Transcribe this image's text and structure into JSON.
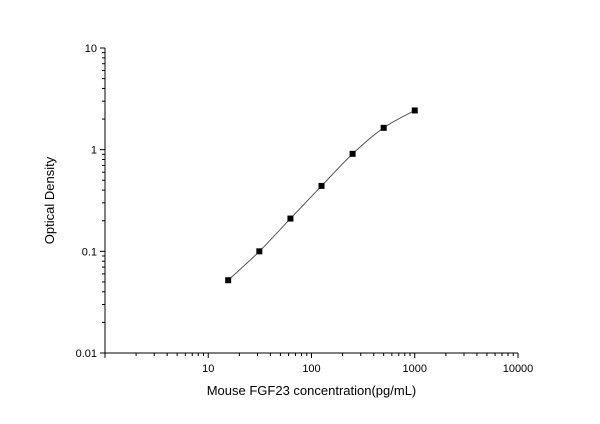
{
  "chart_data": {
    "type": "scatter",
    "title": "",
    "xlabel": "Mouse FGF23 concentration(pg/mL)",
    "ylabel": "Optical Density",
    "xscale": "log",
    "yscale": "log",
    "xlim": [
      1,
      10000
    ],
    "ylim": [
      0.01,
      10
    ],
    "x_ticks": [
      {
        "value": 10,
        "label": "10"
      },
      {
        "value": 100,
        "label": "100"
      },
      {
        "value": 1000,
        "label": "1000"
      },
      {
        "value": 10000,
        "label": "10000"
      }
    ],
    "y_ticks": [
      {
        "value": 0.01,
        "label": "0.01"
      },
      {
        "value": 0.1,
        "label": "0.1"
      },
      {
        "value": 1,
        "label": "1"
      },
      {
        "value": 10,
        "label": "10"
      }
    ],
    "grid": false,
    "series": [
      {
        "marker": "square",
        "fit_line": true,
        "x": [
          15.6,
          31.25,
          62.5,
          125,
          250,
          500,
          1000
        ],
        "y": [
          0.052,
          0.1,
          0.21,
          0.44,
          0.91,
          1.64,
          2.43
        ]
      }
    ],
    "colors": {
      "marker": "#000000",
      "line": "#555555",
      "axis": "#000000"
    }
  }
}
